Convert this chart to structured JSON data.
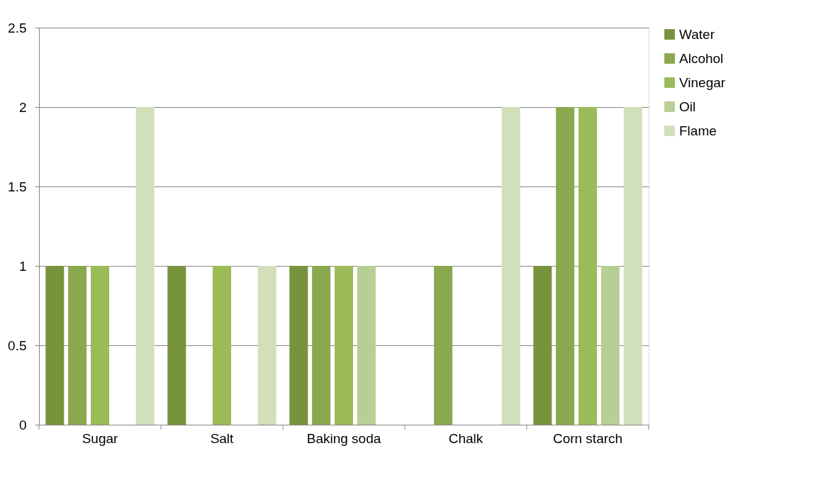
{
  "chart_data": {
    "type": "bar",
    "categories": [
      "Sugar",
      "Salt",
      "Baking soda",
      "Chalk",
      "Corn starch"
    ],
    "series": [
      {
        "name": "Water",
        "color": "#77933c",
        "values": [
          1,
          1,
          1,
          null,
          1
        ]
      },
      {
        "name": "Alcohol",
        "color": "#8aa84e",
        "values": [
          1,
          null,
          1,
          1,
          2
        ]
      },
      {
        "name": "Vinegar",
        "color": "#9bbb59",
        "values": [
          1,
          1,
          1,
          null,
          2
        ]
      },
      {
        "name": "Oil",
        "color": "#b7cf95",
        "values": [
          null,
          null,
          1,
          null,
          1
        ]
      },
      {
        "name": "Flame",
        "color": "#d1dfbb",
        "values": [
          2,
          1,
          null,
          2,
          2
        ]
      }
    ],
    "ylim": [
      0,
      2.5
    ],
    "yticks": [
      0,
      0.5,
      1,
      1.5,
      2,
      2.5
    ],
    "grid": "y",
    "legend": "right"
  }
}
